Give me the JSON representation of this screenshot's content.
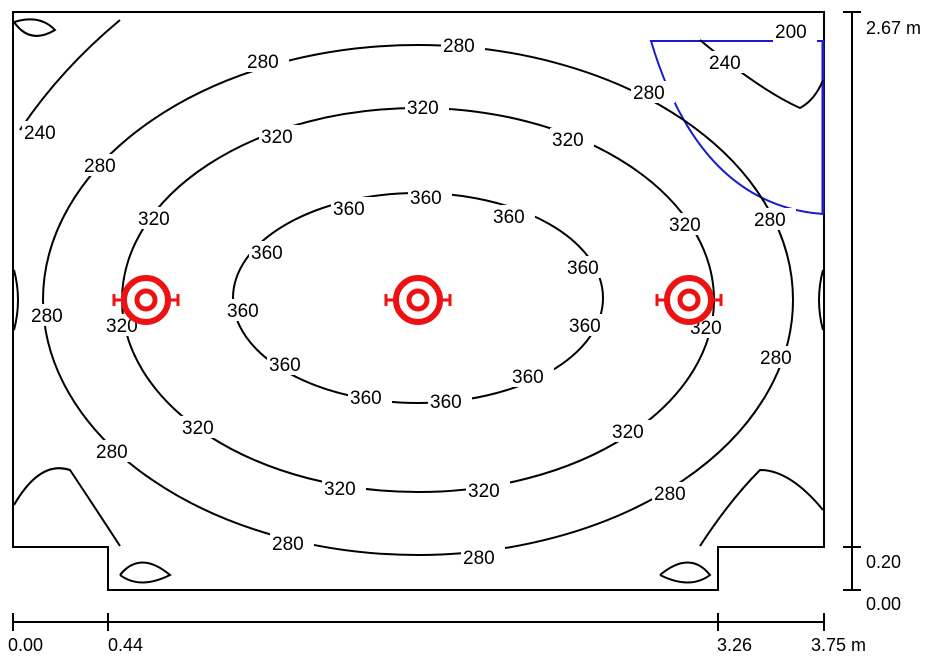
{
  "contour_labels": {
    "l200": "200",
    "l240": "240",
    "l280": "280",
    "l320": "320",
    "l360": "360"
  },
  "x_dimensions": [
    "0.00",
    "0.44",
    "3.26",
    "3.75 m"
  ],
  "y_dimensions": [
    "2.67 m",
    "0.20",
    "0.00"
  ],
  "luminaire_count": 3,
  "colors": {
    "contour": "#000000",
    "luminaire": "#ee1111",
    "workplane": "#1a1ad0",
    "room_outline": "#000000"
  },
  "icons": {
    "luminaire": "luminaire-icon"
  }
}
